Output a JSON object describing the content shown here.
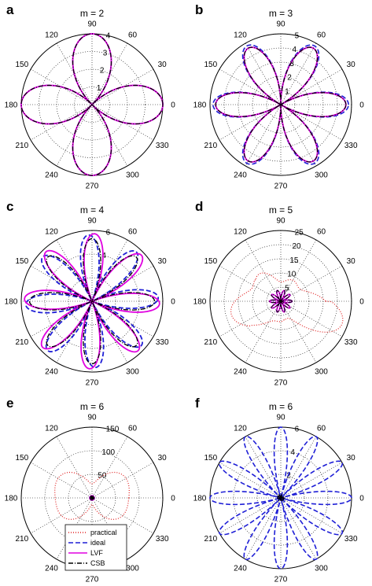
{
  "chart_data": [
    {
      "id": "a",
      "type": "polar",
      "panel_label": "a",
      "title": "m = 2",
      "rmax": 4,
      "ring_labels": [
        "1",
        "2",
        "3",
        "4"
      ],
      "petals": 2,
      "petal_peak": 4,
      "series": [
        {
          "name": "practical",
          "color": "#000000",
          "dash": "6 2 1 2",
          "width": 1.2,
          "amp": 1.0,
          "phase": 0,
          "curve": "petal"
        },
        {
          "name": "ideal",
          "color": "#1f1fd6",
          "dash": "6 3",
          "width": 1.6,
          "amp": 1.0,
          "phase": 0,
          "curve": "petal"
        },
        {
          "name": "LVF",
          "color": "#e000e0",
          "dash": "",
          "width": 1.8,
          "amp": 1.0,
          "phase": 0,
          "curve": "petal"
        },
        {
          "name": "CSB",
          "color": "#000000",
          "dash": "6 2 1 2",
          "width": 1.2,
          "amp": 1.0,
          "phase": 0,
          "curve": "petal"
        }
      ]
    },
    {
      "id": "b",
      "type": "polar",
      "panel_label": "b",
      "title": "m = 3",
      "rmax": 5,
      "ring_labels": [
        "1",
        "2",
        "3",
        "4",
        "5"
      ],
      "petals": 3,
      "petal_peak": 4.6,
      "series": [
        {
          "name": "practical",
          "color": "#000000",
          "dash": "6 2 1 2",
          "width": 1.2,
          "amp": 1.0,
          "phase": 0,
          "curve": "petal"
        },
        {
          "name": "ideal",
          "color": "#1f1fd6",
          "dash": "6 3",
          "width": 1.6,
          "amp": 1.04,
          "phase": 0,
          "curve": "petal"
        },
        {
          "name": "LVF",
          "color": "#e000e0",
          "dash": "",
          "width": 1.8,
          "amp": 1.0,
          "phase": 0,
          "curve": "petal"
        },
        {
          "name": "CSB",
          "color": "#000000",
          "dash": "6 2 1 2",
          "width": 1.2,
          "amp": 1.0,
          "phase": 0,
          "curve": "petal"
        }
      ]
    },
    {
      "id": "c",
      "type": "polar",
      "panel_label": "c",
      "title": "m = 4",
      "rmax": 6,
      "ring_labels": [
        "2",
        "4",
        "6"
      ],
      "petals": 4,
      "petal_peak": 5.3,
      "series": [
        {
          "name": "practical",
          "color": "#000000",
          "dash": "6 2 1 2",
          "width": 1.2,
          "amp": 1.0,
          "phase": 0,
          "curve": "petal"
        },
        {
          "name": "ideal",
          "color": "#1f1fd6",
          "dash": "6 3",
          "width": 1.8,
          "amp": 1.06,
          "phase": 3,
          "curve": "petal"
        },
        {
          "name": "LVF",
          "color": "#e000e0",
          "dash": "",
          "width": 1.8,
          "amp": 1.08,
          "phase": -2,
          "curve": "petal"
        },
        {
          "name": "CSB",
          "color": "#000000",
          "dash": "6 2 1 2",
          "width": 1.2,
          "amp": 1.0,
          "phase": 0,
          "curve": "petal"
        }
      ]
    },
    {
      "id": "d",
      "type": "polar",
      "panel_label": "d",
      "title": "m = 5",
      "rmax": 25,
      "ring_labels": [
        "5",
        "10",
        "15",
        "20",
        "25"
      ],
      "petals": 5,
      "petal_peak": 4,
      "series": [
        {
          "name": "practical",
          "color": "#e02020",
          "dash": "1 2",
          "width": 1.2,
          "amp": 1.0,
          "phase": 0,
          "curve": "blob-d"
        },
        {
          "name": "ideal",
          "color": "#1f1fd6",
          "dash": "6 3",
          "width": 1.6,
          "amp": 1.0,
          "phase": 0,
          "curve": "petal"
        },
        {
          "name": "LVF",
          "color": "#e000e0",
          "dash": "",
          "width": 1.6,
          "amp": 1.0,
          "phase": 0,
          "curve": "petal"
        },
        {
          "name": "CSB",
          "color": "#000000",
          "dash": "6 2 1 2",
          "width": 1.0,
          "amp": 1.0,
          "phase": 0,
          "curve": "petal"
        }
      ]
    },
    {
      "id": "e",
      "type": "polar",
      "panel_label": "e",
      "title": "m = 6",
      "rmax": 150,
      "ring_labels": [
        "50",
        "100",
        "150"
      ],
      "petals": 6,
      "petal_peak": 5,
      "series": [
        {
          "name": "practical",
          "color": "#e02020",
          "dash": "1 2",
          "width": 1.2,
          "amp": 1.0,
          "phase": 0,
          "curve": "blob-e"
        },
        {
          "name": "ideal",
          "color": "#1f1fd6",
          "dash": "6 3",
          "width": 1.6,
          "amp": 1.0,
          "phase": 0,
          "curve": "petal"
        },
        {
          "name": "LVF",
          "color": "#e000e0",
          "dash": "",
          "width": 1.6,
          "amp": 1.0,
          "phase": 0,
          "curve": "petal"
        },
        {
          "name": "CSB",
          "color": "#000000",
          "dash": "6 2 1 2",
          "width": 1.0,
          "amp": 1.0,
          "phase": 0,
          "curve": "petal"
        }
      ],
      "legend": {
        "position": "bottom-right",
        "entries": [
          {
            "label": "practical",
            "color": "#e02020",
            "dash": "1 2"
          },
          {
            "label": "ideal",
            "color": "#1f1fd6",
            "dash": "6 3"
          },
          {
            "label": "LVF",
            "color": "#e000e0",
            "dash": ""
          },
          {
            "label": "CSB",
            "color": "#000000",
            "dash": "6 2 1 2"
          }
        ]
      }
    },
    {
      "id": "f",
      "type": "polar",
      "panel_label": "f",
      "title": "m = 6",
      "rmax": 6,
      "ring_labels": [
        "2",
        "4",
        "6"
      ],
      "petals": 6,
      "petal_peak": 6,
      "series": [
        {
          "name": "ideal",
          "color": "#1f1fd6",
          "dash": "6 3",
          "width": 1.6,
          "amp": 1.0,
          "phase": 0,
          "curve": "petal"
        },
        {
          "name": "CSB",
          "color": "#000000",
          "dash": "6 2 1 2",
          "width": 1.0,
          "amp": 0.05,
          "phase": 0,
          "curve": "petal"
        }
      ]
    }
  ],
  "angle_labels": [
    "0",
    "30",
    "60",
    "90",
    "120",
    "150",
    "180",
    "210",
    "240",
    "270",
    "300",
    "330"
  ],
  "grid": true
}
